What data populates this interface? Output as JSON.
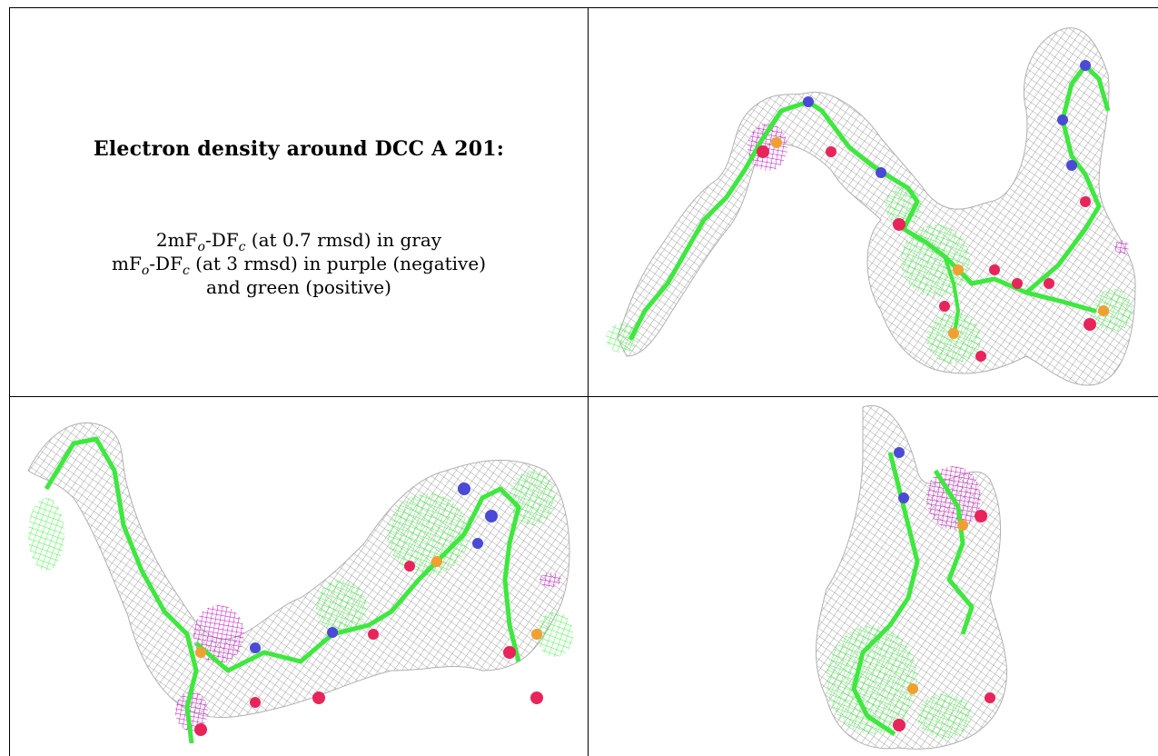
{
  "caption": {
    "title": "Electron density around DCC A 201:",
    "line1": {
      "prefix": "2mF",
      "sub1": "o",
      "mid": "-DF",
      "sub2": "c",
      "suffix": " (at 0.7 rmsd) in gray"
    },
    "line2": {
      "prefix": "mF",
      "sub1": "o",
      "mid": "-DF",
      "sub2": "c",
      "suffix": " (at 3 rmsd) in purple (negative)"
    },
    "line3": "and green (positive)"
  },
  "colors": {
    "mesh_gray": "#8c8c8c",
    "carbon_green": "#3ee83e",
    "positive_green": "#33ff33",
    "negative_purple": "#cc00cc",
    "oxygen_red": "#e8245a",
    "nitrogen_blue": "#4a4ad6",
    "phosphorus_orange": "#f0a030"
  },
  "panels": [
    {
      "name": "density-view-1"
    },
    {
      "name": "density-view-2"
    },
    {
      "name": "density-view-3"
    }
  ]
}
